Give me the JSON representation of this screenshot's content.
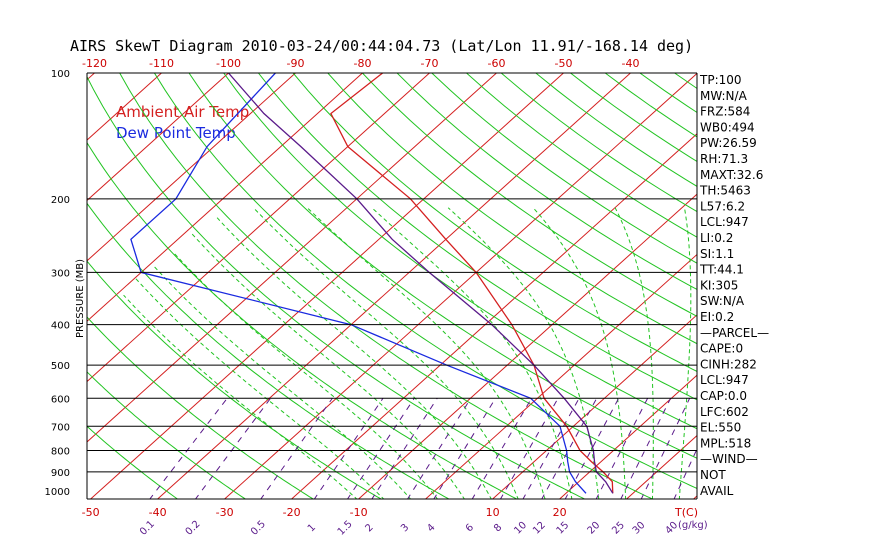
{
  "chart_data": {
    "type": "line",
    "title": "AIRS SkewT Diagram 2010-03-24/00:44:04.73 (Lat/Lon 11.91/-168.14 deg)",
    "ylabel": "PRESSURE (MB)",
    "xlabel_right": "T(C)",
    "mix_unit": "(g/kg)",
    "pressure_ticks": [
      {
        "p": 100,
        "label": "100"
      },
      {
        "p": 200,
        "label": "200"
      },
      {
        "p": 300,
        "label": "300"
      },
      {
        "p": 400,
        "label": "400"
      },
      {
        "p": 500,
        "label": "500"
      },
      {
        "p": 600,
        "label": "600"
      },
      {
        "p": 700,
        "label": "700"
      },
      {
        "p": 800,
        "label": "800"
      },
      {
        "p": 900,
        "label": "900"
      },
      {
        "p": 1000,
        "label": "1000"
      }
    ],
    "top_temps": [
      "-120",
      "-110",
      "-100",
      "-90",
      "-80",
      "-70",
      "-60",
      "-50",
      "-40"
    ],
    "bottom_temps": [
      "-50",
      "-40",
      "-30",
      "-20",
      "-10",
      "10",
      "20"
    ],
    "mixing_ratios": [
      "0.1",
      "0.2",
      "0.5",
      "1",
      "1.5",
      "2",
      "3",
      "4",
      "6",
      "8",
      "10",
      "12",
      "15",
      "20",
      "25",
      "30",
      "40"
    ],
    "legend": [
      {
        "name": "Ambient Air Temp",
        "color": "#d42020"
      },
      {
        "name": "Dew Point Temp",
        "color": "#1a2adf"
      }
    ],
    "colors": {
      "temp": "#d42020",
      "dew": "#1a2adf",
      "parcel": "#5a1a8a",
      "isotherm": "#d42020",
      "dry_adiabat": "#22c422",
      "moist_adiabat": "#22c422",
      "mixing": "#5a1a8a"
    },
    "series": [
      {
        "name": "Ambient Air Temp",
        "points": [
          [
            1013,
            27
          ],
          [
            950,
            25
          ],
          [
            900,
            22
          ],
          [
            850,
            18.5
          ],
          [
            800,
            15
          ],
          [
            700,
            9
          ],
          [
            600,
            1
          ],
          [
            500,
            -6
          ],
          [
            400,
            -16
          ],
          [
            300,
            -30
          ],
          [
            250,
            -40
          ],
          [
            200,
            -52
          ],
          [
            150,
            -70
          ],
          [
            125,
            -78
          ],
          [
            100,
            -77
          ]
        ]
      },
      {
        "name": "Dew Point Temp",
        "points": [
          [
            1013,
            23
          ],
          [
            950,
            19.5
          ],
          [
            900,
            17
          ],
          [
            850,
            15
          ],
          [
            800,
            13
          ],
          [
            700,
            8
          ],
          [
            600,
            -1
          ],
          [
            500,
            -19
          ],
          [
            400,
            -40
          ],
          [
            300,
            -80
          ],
          [
            250,
            -87
          ],
          [
            200,
            -87
          ],
          [
            150,
            -91
          ],
          [
            100,
            -93
          ]
        ]
      },
      {
        "name": "Parcel",
        "points": [
          [
            1013,
            27
          ],
          [
            950,
            24
          ],
          [
            900,
            21
          ],
          [
            850,
            19
          ],
          [
            800,
            17
          ],
          [
            700,
            12
          ],
          [
            600,
            4
          ],
          [
            500,
            -6
          ],
          [
            400,
            -19
          ],
          [
            300,
            -37
          ],
          [
            250,
            -48
          ],
          [
            200,
            -60
          ],
          [
            150,
            -77
          ],
          [
            125,
            -88
          ],
          [
            100,
            -100
          ]
        ]
      }
    ],
    "indices": [
      "TP:100",
      "MW:N/A",
      "FRZ:584",
      "WB0:494",
      "PW:26.59",
      "RH:71.3",
      "MAXT:32.6",
      "TH:5463",
      "L57:6.2",
      "LCL:947",
      "LI:0.2",
      "SI:1.1",
      "TT:44.1",
      "KI:305",
      "SW:N/A",
      "EI:0.2",
      "—PARCEL—",
      "CAPE:0",
      "CINH:282",
      "LCL:947",
      "CAP:0.0",
      "LFC:602",
      "EL:550",
      "MPL:518",
      "—WIND—",
      "NOT",
      "AVAIL"
    ]
  }
}
